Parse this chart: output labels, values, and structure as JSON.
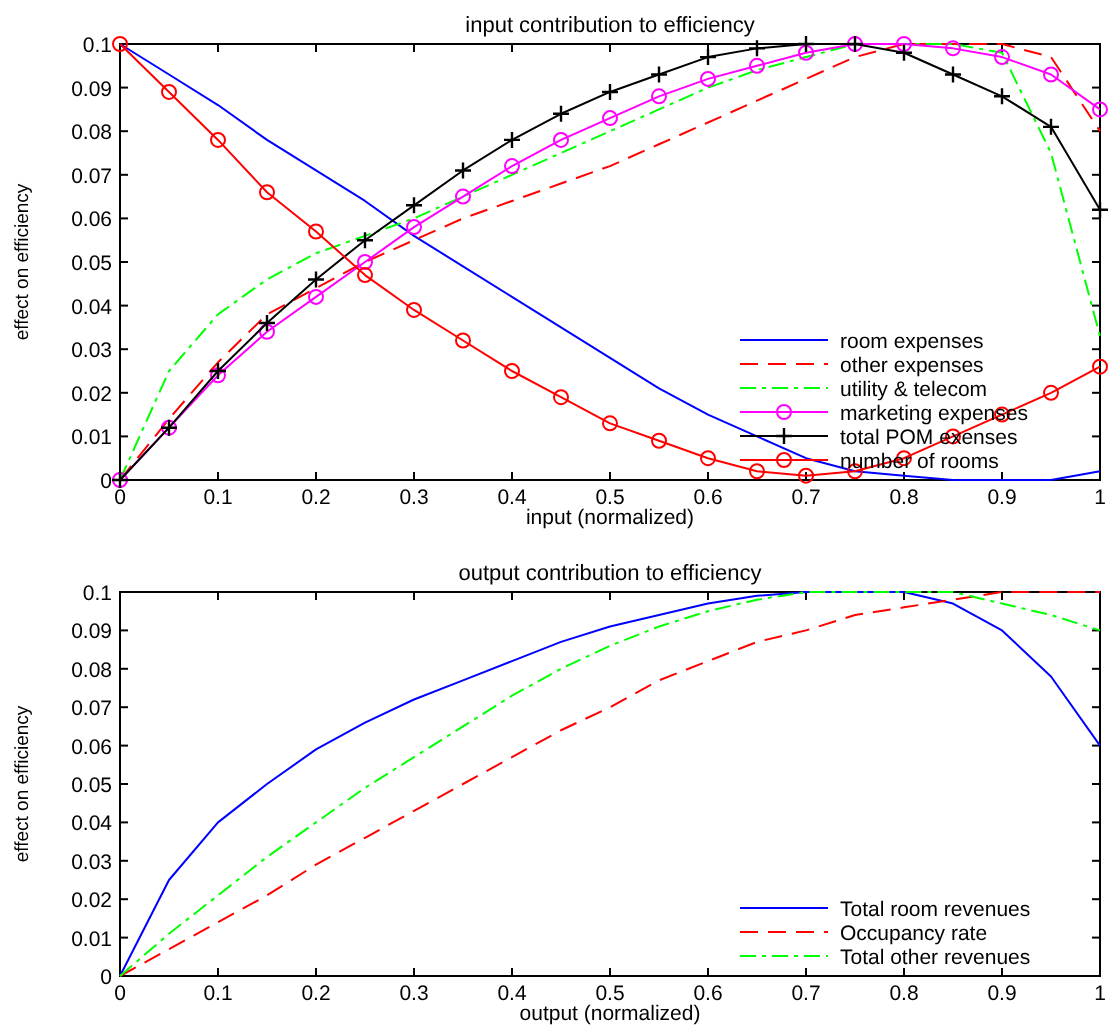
{
  "chart_data": [
    {
      "type": "line",
      "title": "input contribution to efficiency",
      "xlabel": "input (normalized)",
      "ylabel": "effect on efficiency",
      "x": [
        0,
        0.05,
        0.1,
        0.15,
        0.2,
        0.25,
        0.3,
        0.35,
        0.4,
        0.45,
        0.5,
        0.55,
        0.6,
        0.65,
        0.7,
        0.75,
        0.8,
        0.85,
        0.9,
        0.95,
        1
      ],
      "xlim": [
        0,
        1
      ],
      "xticks": [
        0,
        0.1,
        0.2,
        0.3,
        0.4,
        0.5,
        0.6,
        0.7,
        0.8,
        0.9,
        1
      ],
      "ylim": [
        0,
        0.1
      ],
      "yticks": [
        0,
        0.01,
        0.02,
        0.03,
        0.04,
        0.05,
        0.06,
        0.07,
        0.08,
        0.09,
        0.1
      ],
      "legend": "bottom right",
      "grid": false,
      "series": [
        {
          "name": "room expenses",
          "color": "#0000ff",
          "line_style": "solid",
          "marker": "none",
          "values": [
            0.1,
            0.093,
            0.086,
            0.078,
            0.071,
            0.064,
            0.056,
            0.049,
            0.042,
            0.035,
            0.028,
            0.021,
            0.015,
            0.01,
            0.005,
            0.002,
            0.001,
            0,
            0,
            0,
            0.002
          ]
        },
        {
          "name": "other expenses",
          "color": "#ff0000",
          "line_style": "dashed",
          "marker": "none",
          "values": [
            0,
            0.014,
            0.027,
            0.038,
            0.044,
            0.05,
            0.055,
            0.06,
            0.064,
            0.068,
            0.072,
            0.077,
            0.082,
            0.087,
            0.092,
            0.097,
            0.1,
            0.1,
            0.1,
            0.097,
            0.08
          ]
        },
        {
          "name": "utility & telecom",
          "color": "#00ff00",
          "line_style": "dashdot",
          "marker": "none",
          "values": [
            0,
            0.025,
            0.038,
            0.046,
            0.052,
            0.056,
            0.06,
            0.065,
            0.07,
            0.075,
            0.08,
            0.085,
            0.09,
            0.094,
            0.097,
            0.1,
            0.1,
            0.1,
            0.098,
            0.075,
            0.033
          ]
        },
        {
          "name": "marketing expenses",
          "color": "#ff00ff",
          "line_style": "solid",
          "marker": "circle",
          "values": [
            0,
            0.012,
            0.024,
            0.034,
            0.042,
            0.05,
            0.058,
            0.065,
            0.072,
            0.078,
            0.083,
            0.088,
            0.092,
            0.095,
            0.098,
            0.1,
            0.1,
            0.099,
            0.097,
            0.093,
            0.085
          ]
        },
        {
          "name": "total POM exenses",
          "color": "#000000",
          "line_style": "solid",
          "marker": "cross",
          "values": [
            0,
            0.012,
            0.025,
            0.036,
            0.046,
            0.055,
            0.063,
            0.071,
            0.078,
            0.084,
            0.089,
            0.093,
            0.097,
            0.099,
            0.1,
            0.1,
            0.098,
            0.093,
            0.088,
            0.081,
            0.062
          ]
        },
        {
          "name": "number of rooms",
          "color": "#ff0000",
          "line_style": "solid",
          "marker": "circle",
          "values": [
            0.1,
            0.089,
            0.078,
            0.066,
            0.057,
            0.047,
            0.039,
            0.032,
            0.025,
            0.019,
            0.013,
            0.009,
            0.005,
            0.002,
            0.001,
            0.002,
            0.005,
            0.01,
            0.015,
            0.02,
            0.026
          ]
        }
      ]
    },
    {
      "type": "line",
      "title": "output contribution to efficiency",
      "xlabel": "output (normalized)",
      "ylabel": "effect on efficiency",
      "x": [
        0,
        0.05,
        0.1,
        0.15,
        0.2,
        0.25,
        0.3,
        0.35,
        0.4,
        0.45,
        0.5,
        0.55,
        0.6,
        0.65,
        0.7,
        0.75,
        0.8,
        0.85,
        0.9,
        0.95,
        1
      ],
      "xlim": [
        0,
        1
      ],
      "xticks": [
        0,
        0.1,
        0.2,
        0.3,
        0.4,
        0.5,
        0.6,
        0.7,
        0.8,
        0.9,
        1
      ],
      "ylim": [
        0,
        0.1
      ],
      "yticks": [
        0,
        0.01,
        0.02,
        0.03,
        0.04,
        0.05,
        0.06,
        0.07,
        0.08,
        0.09,
        0.1
      ],
      "legend": "bottom right",
      "grid": false,
      "series": [
        {
          "name": "Total room revenues",
          "color": "#0000ff",
          "line_style": "solid",
          "marker": "none",
          "values": [
            0,
            0.025,
            0.04,
            0.05,
            0.059,
            0.066,
            0.072,
            0.077,
            0.082,
            0.087,
            0.091,
            0.094,
            0.097,
            0.099,
            0.1,
            0.1,
            0.1,
            0.097,
            0.09,
            0.078,
            0.06
          ]
        },
        {
          "name": "Occupancy rate",
          "color": "#ff0000",
          "line_style": "dashed",
          "marker": "none",
          "values": [
            0,
            0.007,
            0.014,
            0.021,
            0.029,
            0.036,
            0.043,
            0.05,
            0.057,
            0.064,
            0.07,
            0.077,
            0.082,
            0.087,
            0.09,
            0.094,
            0.096,
            0.098,
            0.1,
            0.1,
            0.1
          ]
        },
        {
          "name": "Total other revenues",
          "color": "#00ff00",
          "line_style": "dashdot",
          "marker": "none",
          "values": [
            0,
            0.011,
            0.021,
            0.031,
            0.04,
            0.049,
            0.057,
            0.065,
            0.073,
            0.08,
            0.086,
            0.091,
            0.095,
            0.098,
            0.1,
            0.1,
            0.1,
            0.1,
            0.097,
            0.094,
            0.09
          ]
        }
      ]
    }
  ]
}
